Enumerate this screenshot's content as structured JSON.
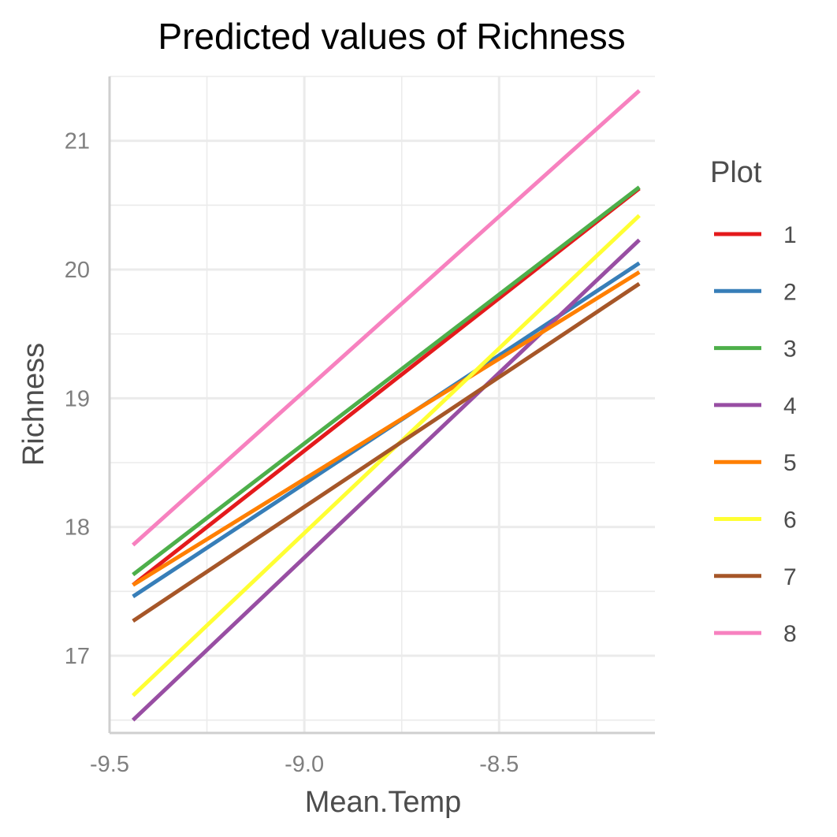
{
  "chart_data": {
    "type": "line",
    "title": "Predicted values of Richness",
    "xlabel": "Mean.Temp",
    "ylabel": "Richness",
    "xlim": [
      -9.5,
      -8.1
    ],
    "ylim": [
      16.4,
      21.5
    ],
    "x_ticks": [
      "-9.5",
      "-9.0",
      "-8.5"
    ],
    "x_tick_values": [
      -9.5,
      -9.0,
      -8.5
    ],
    "y_ticks": [
      "17",
      "18",
      "19",
      "20",
      "21"
    ],
    "y_tick_values": [
      17,
      18,
      19,
      20,
      21
    ],
    "grid": true,
    "legend": {
      "title": "Plot",
      "position": "right"
    },
    "series": [
      {
        "name": "1",
        "color": "#e41a1c",
        "x": [
          -9.44,
          -8.14
        ],
        "y": [
          17.55,
          20.63
        ]
      },
      {
        "name": "2",
        "color": "#377eb8",
        "x": [
          -9.44,
          -8.14
        ],
        "y": [
          17.46,
          20.05
        ]
      },
      {
        "name": "3",
        "color": "#4daf4a",
        "x": [
          -9.44,
          -8.14
        ],
        "y": [
          17.63,
          20.64
        ]
      },
      {
        "name": "4",
        "color": "#984ea3",
        "x": [
          -9.44,
          -8.14
        ],
        "y": [
          16.5,
          20.23
        ]
      },
      {
        "name": "5",
        "color": "#ff7f00",
        "x": [
          -9.44,
          -8.14
        ],
        "y": [
          17.55,
          19.98
        ]
      },
      {
        "name": "6",
        "color": "#ffff33",
        "x": [
          -9.44,
          -8.14
        ],
        "y": [
          16.69,
          20.42
        ]
      },
      {
        "name": "7",
        "color": "#a65628",
        "x": [
          -9.44,
          -8.14
        ],
        "y": [
          17.27,
          19.89
        ]
      },
      {
        "name": "8",
        "color": "#f781bf",
        "x": [
          -9.44,
          -8.14
        ],
        "y": [
          17.86,
          21.39
        ]
      }
    ]
  }
}
